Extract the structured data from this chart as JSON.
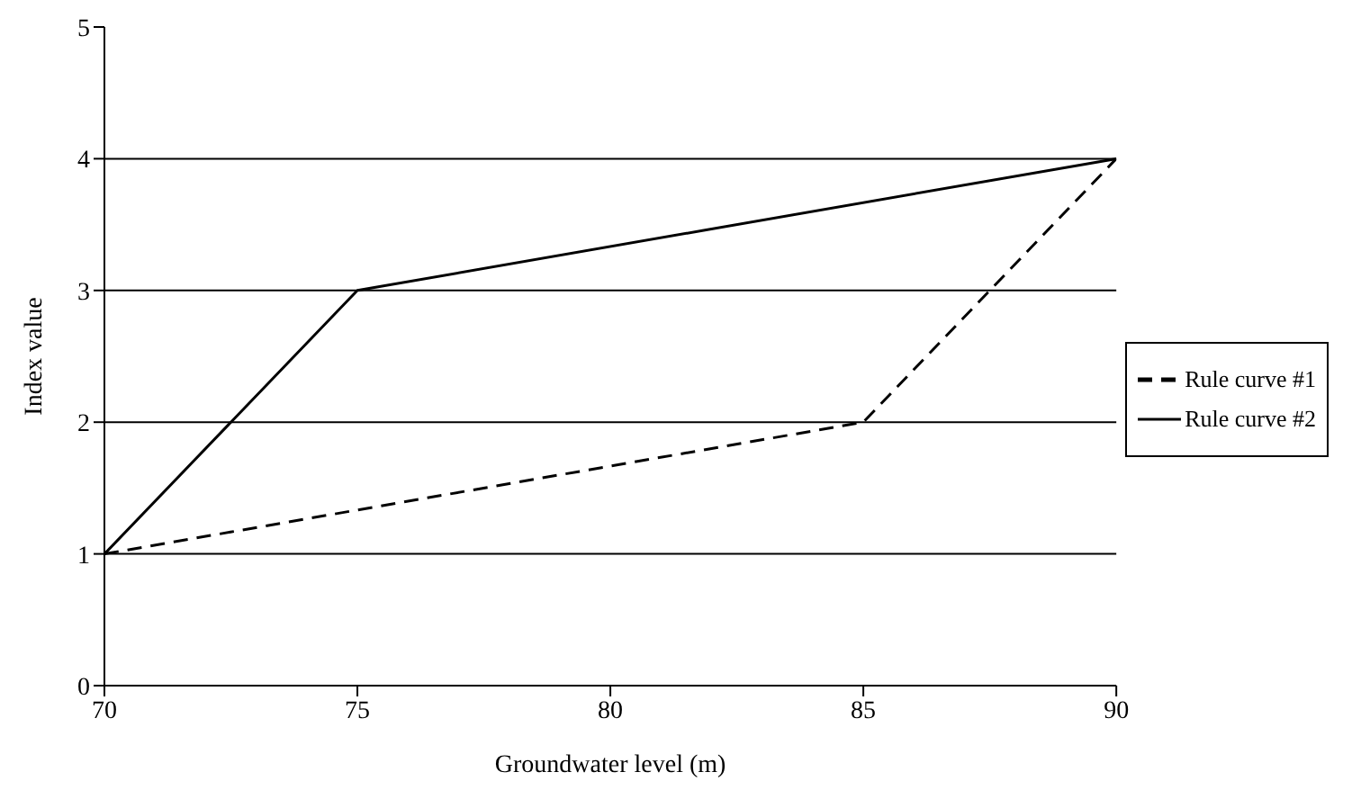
{
  "chart_data": {
    "type": "line",
    "xlabel": "Groundwater level (m)",
    "ylabel": "Index value",
    "series": [
      {
        "name": "Rule curve #1",
        "color": "#000000",
        "line_style": "dashed",
        "x": [
          70,
          85,
          90
        ],
        "values": [
          1,
          2,
          4
        ]
      },
      {
        "name": "Rule curve #2",
        "color": "#000000",
        "line_style": "solid",
        "x": [
          70,
          75,
          90
        ],
        "values": [
          1,
          3,
          4
        ]
      }
    ],
    "xlim": [
      70,
      90
    ],
    "xticks": [
      70,
      75,
      80,
      85,
      90
    ],
    "ylim": [
      0,
      5
    ],
    "yticks": [
      0,
      1,
      2,
      3,
      4,
      5
    ],
    "grid": "y",
    "legend": "right",
    "marker": "none"
  }
}
